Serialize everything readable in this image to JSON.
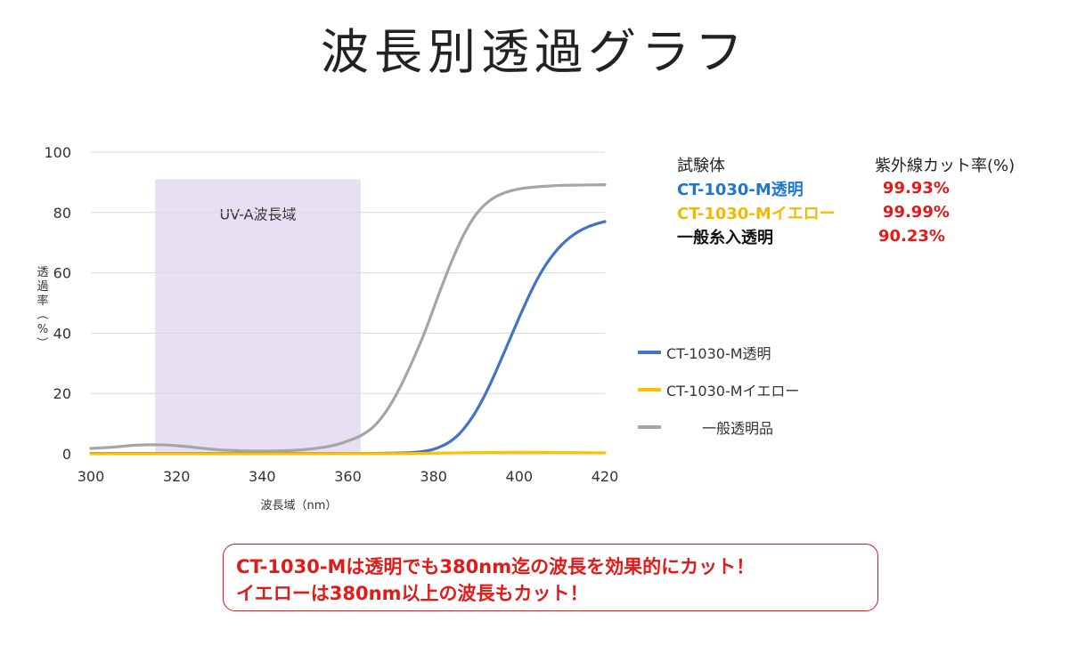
{
  "title": "波長別透過グラフ",
  "chart_data": {
    "type": "line",
    "title": "",
    "xlabel": "波長域（nm）",
    "ylabel": "透過率（%）",
    "xlim": [
      300,
      420
    ],
    "ylim": [
      0,
      100
    ],
    "x_ticks": [
      300,
      320,
      340,
      360,
      380,
      400,
      420
    ],
    "y_ticks": [
      0,
      20,
      40,
      60,
      80,
      100
    ],
    "grid": "horizontal",
    "legend_position": "right",
    "band": {
      "label": "UV-A波長域",
      "x_range": [
        315,
        363
      ],
      "y_top": 91,
      "color": "#e6e0f2"
    },
    "series": [
      {
        "name": "CT-1030-M透明",
        "color": "#4472c4",
        "x": [
          300,
          360,
          365,
          370,
          375,
          378,
          380,
          382,
          384,
          386,
          388,
          390,
          392,
          394,
          396,
          398,
          400,
          402,
          404,
          406,
          408,
          410,
          412,
          414,
          416,
          418,
          420
        ],
        "y": [
          0.1,
          0.1,
          0.1,
          0.2,
          0.4,
          0.9,
          1.5,
          2.6,
          4.2,
          6.6,
          10,
          14.3,
          19.5,
          25.5,
          32,
          38.6,
          45.2,
          51.5,
          57.3,
          62.2,
          66.2,
          69.4,
          71.9,
          73.8,
          75.2,
          76.2,
          77
        ]
      },
      {
        "name": "CT-1030-Mイエロー",
        "color": "#ffc000",
        "x": [
          300,
          340,
          370,
          380,
          390,
          400,
          410,
          420
        ],
        "y": [
          0,
          0,
          0.05,
          0.2,
          0.4,
          0.5,
          0.4,
          0.3
        ]
      },
      {
        "name": "一般透明品",
        "color": "#a5a5a5",
        "x": [
          300,
          305,
          310,
          315,
          320,
          325,
          330,
          335,
          340,
          345,
          350,
          355,
          358,
          361,
          363,
          366,
          369,
          372,
          375,
          378,
          381,
          384,
          387,
          390,
          393,
          396,
          400,
          405,
          410,
          415,
          420
        ],
        "y": [
          1.8,
          2.2,
          2.8,
          3.0,
          2.7,
          2.0,
          1.3,
          1.0,
          0.9,
          1.0,
          1.4,
          2.3,
          3.3,
          4.8,
          6.0,
          9.0,
          14.2,
          21.5,
          30.5,
          40.5,
          52,
          63,
          72.5,
          79.5,
          83.8,
          86.2,
          87.8,
          88.6,
          89,
          89.1,
          89.2
        ]
      }
    ]
  },
  "results_table": {
    "header": {
      "name": "試験体",
      "rate": "紫外線カット率(%)"
    },
    "rows": [
      {
        "name": "CT-1030-M透明",
        "rate": "99.93%",
        "name_color": "#1f77c9",
        "rate_color": "#e11a1a"
      },
      {
        "name": "CT-1030-Mイエロー",
        "rate": "99.99%",
        "name_color": "#f5b800",
        "rate_color": "#e11a1a"
      },
      {
        "name": "一般糸入透明",
        "rate": "90.23%",
        "name_color": "#111111",
        "rate_color": "#e11a1a"
      }
    ]
  },
  "callout": {
    "line1": "CT-1030-Mは透明でも380nm迄の波長を効果的にカット！",
    "line2": "イエローは380nm以上の波長もカット！"
  }
}
